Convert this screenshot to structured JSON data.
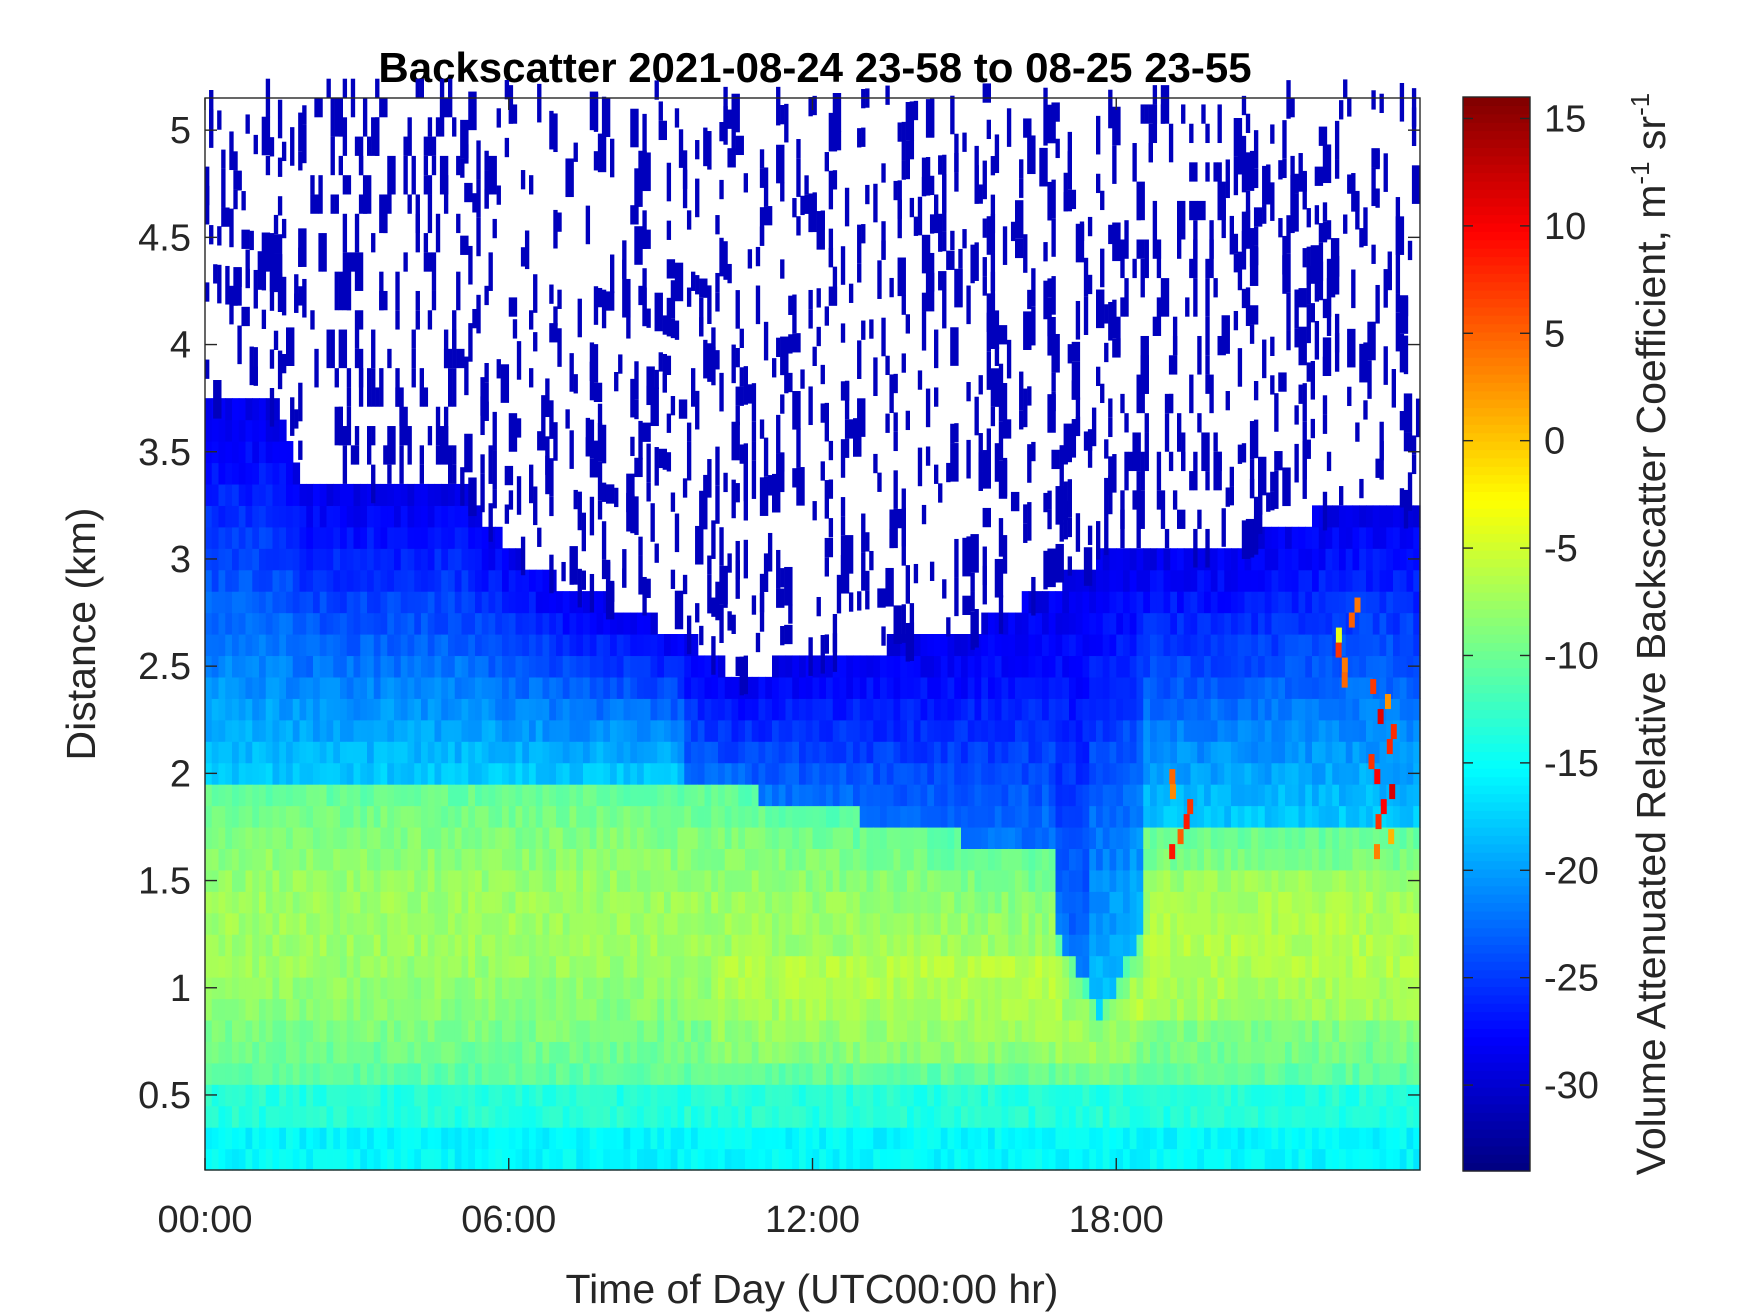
{
  "chart_data": {
    "type": "heatmap",
    "title": "Backscatter 2021-08-24 23-58 to 08-25 23-55",
    "xlabel": "Time of Day (UTC00:00 hr)",
    "ylabel": "Distance (km)",
    "x_ticks": [
      {
        "label": "00:00",
        "value": 0
      },
      {
        "label": "06:00",
        "value": 6
      },
      {
        "label": "12:00",
        "value": 12
      },
      {
        "label": "18:00",
        "value": 18
      }
    ],
    "y_ticks": [
      {
        "label": "0.5",
        "value": 0.5
      },
      {
        "label": "1",
        "value": 1
      },
      {
        "label": "1.5",
        "value": 1.5
      },
      {
        "label": "2",
        "value": 2
      },
      {
        "label": "2.5",
        "value": 2.5
      },
      {
        "label": "3",
        "value": 3
      },
      {
        "label": "3.5",
        "value": 3.5
      },
      {
        "label": "4",
        "value": 4
      },
      {
        "label": "4.5",
        "value": 4.5
      },
      {
        "label": "5",
        "value": 5
      }
    ],
    "xlim": [
      0,
      24
    ],
    "ylim": [
      0.15,
      5.15
    ],
    "colormap": "jet",
    "colorbar": {
      "label_main": "Volume Attenuated Relative Backscatter Coefficient, m",
      "sup1": "-1",
      "mid": " sr",
      "sup2": "-1",
      "clim": [
        -34,
        16
      ],
      "ticks": [
        {
          "label": "15",
          "value": 15
        },
        {
          "label": "10",
          "value": 10
        },
        {
          "label": "5",
          "value": 5
        },
        {
          "label": "0",
          "value": 0
        },
        {
          "label": "-5",
          "value": -5
        },
        {
          "label": "-10",
          "value": -10
        },
        {
          "label": "-15",
          "value": -15
        },
        {
          "label": "-20",
          "value": -20
        },
        {
          "label": "-25",
          "value": -25
        },
        {
          "label": "-30",
          "value": -30
        }
      ]
    },
    "approximate_field": {
      "description_source": "values estimated from colors",
      "surface_layer_value": -15,
      "boundary_layer_value_range": [
        -12,
        -7
      ],
      "aerosol_top_km": [
        [
          0,
          3.75
        ],
        [
          1.5,
          3.7
        ],
        [
          2,
          3.35
        ],
        [
          5,
          3.35
        ],
        [
          6,
          3.05
        ],
        [
          7,
          2.9
        ],
        [
          9.5,
          2.65
        ],
        [
          10.5,
          2.45
        ],
        [
          12,
          2.55
        ],
        [
          15,
          2.65
        ],
        [
          16.5,
          2.85
        ],
        [
          18,
          3.05
        ],
        [
          20,
          3.05
        ],
        [
          23,
          3.3
        ],
        [
          24,
          3.2
        ]
      ],
      "mixed_layer_dip": {
        "time_hr": 17.7,
        "min_height_km": 0.85
      },
      "noise_value": -31,
      "cloud_events": [
        {
          "time_hr": 19.2,
          "height_km": [
            1.6,
            2.0
          ],
          "value": 10
        },
        {
          "time_hr": 22.5,
          "height_km": [
            2.4,
            2.8
          ],
          "value": 8
        },
        {
          "time_hr": 23.2,
          "height_km": [
            1.6,
            2.4
          ],
          "value": 12
        }
      ]
    }
  }
}
